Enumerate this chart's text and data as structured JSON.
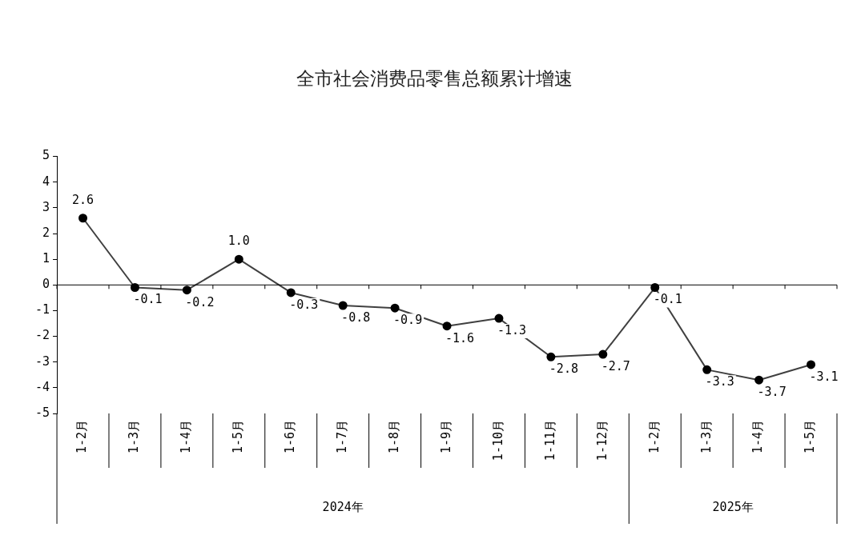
{
  "chart_data": {
    "type": "line",
    "title": "全市社会消费品零售总额累计增速",
    "categories": [
      "1-2月",
      "1-3月",
      "1-4月",
      "1-5月",
      "1-6月",
      "1-7月",
      "1-8月",
      "1-9月",
      "1-10月",
      "1-11月",
      "1-12月",
      "1-2月",
      "1-3月",
      "1-4月",
      "1-5月"
    ],
    "values": [
      2.6,
      -0.1,
      -0.2,
      1.0,
      -0.3,
      -0.8,
      -0.9,
      -1.6,
      -1.3,
      -2.8,
      -2.7,
      -0.1,
      -3.3,
      -3.7,
      -3.1
    ],
    "value_labels": [
      "2.6",
      "-0.1",
      "-0.2",
      "1.0",
      "-0.3",
      "-0.8",
      "-0.9",
      "-1.6",
      "-1.3",
      "-2.8",
      "-2.7",
      "-0.1",
      "-3.3",
      "-3.7",
      "-3.1"
    ],
    "color": "#404040",
    "marker": "circle",
    "ylim": [
      -5,
      5
    ],
    "yticks": [
      -5,
      -4,
      -3,
      -2,
      -1,
      0,
      1,
      2,
      3,
      4,
      5
    ],
    "annotations": [
      "2024年",
      "2025年"
    ]
  }
}
